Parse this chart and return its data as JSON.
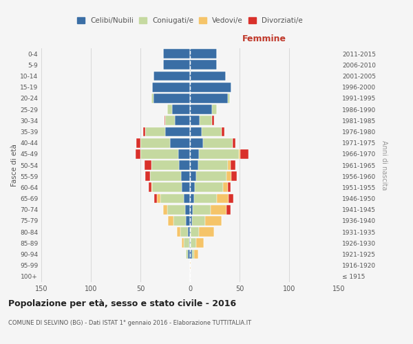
{
  "age_groups": [
    "100+",
    "95-99",
    "90-94",
    "85-89",
    "80-84",
    "75-79",
    "70-74",
    "65-69",
    "60-64",
    "55-59",
    "50-54",
    "45-49",
    "40-44",
    "35-39",
    "30-34",
    "25-29",
    "20-24",
    "15-19",
    "10-14",
    "5-9",
    "0-4"
  ],
  "birth_years": [
    "≤ 1915",
    "1916-1920",
    "1921-1925",
    "1926-1930",
    "1931-1935",
    "1936-1940",
    "1941-1945",
    "1946-1950",
    "1951-1955",
    "1956-1960",
    "1961-1965",
    "1966-1970",
    "1971-1975",
    "1976-1980",
    "1981-1985",
    "1986-1990",
    "1991-1995",
    "1996-2000",
    "2001-2005",
    "2006-2010",
    "2011-2015"
  ],
  "males": {
    "celibi": [
      0,
      0,
      2,
      1,
      2,
      4,
      5,
      6,
      8,
      9,
      11,
      12,
      20,
      25,
      15,
      18,
      37,
      38,
      37,
      27,
      27
    ],
    "coniugati": [
      0,
      0,
      2,
      5,
      8,
      13,
      18,
      24,
      30,
      31,
      28,
      38,
      30,
      20,
      10,
      5,
      2,
      0,
      0,
      0,
      0
    ],
    "vedovi": [
      0,
      0,
      0,
      2,
      3,
      5,
      4,
      3,
      1,
      0,
      0,
      0,
      0,
      0,
      0,
      0,
      0,
      0,
      0,
      0,
      0
    ],
    "divorziati": [
      0,
      0,
      0,
      0,
      0,
      0,
      0,
      3,
      3,
      5,
      7,
      5,
      4,
      2,
      1,
      0,
      0,
      0,
      0,
      0,
      0
    ]
  },
  "females": {
    "nubili": [
      0,
      0,
      2,
      1,
      1,
      2,
      3,
      4,
      5,
      6,
      8,
      9,
      13,
      12,
      10,
      22,
      38,
      42,
      36,
      27,
      27
    ],
    "coniugate": [
      0,
      0,
      2,
      5,
      8,
      13,
      18,
      23,
      28,
      31,
      30,
      40,
      30,
      20,
      12,
      5,
      2,
      0,
      0,
      0,
      0
    ],
    "vedove": [
      0,
      1,
      4,
      8,
      15,
      17,
      16,
      12,
      5,
      5,
      3,
      2,
      0,
      0,
      0,
      0,
      0,
      0,
      0,
      0,
      0
    ],
    "divorziate": [
      0,
      0,
      0,
      0,
      0,
      0,
      4,
      5,
      3,
      5,
      5,
      8,
      3,
      3,
      2,
      0,
      0,
      0,
      0,
      0,
      0
    ]
  },
  "colors": {
    "celibi_nubili": "#3a6ea5",
    "coniugati": "#c5d9a0",
    "vedovi": "#f5c469",
    "divorziati": "#d9312b"
  },
  "title": "Popolazione per età, sesso e stato civile - 2016",
  "subtitle": "COMUNE DI SELVINO (BG) - Dati ISTAT 1° gennaio 2016 - Elaborazione TUTTITALIA.IT",
  "xlabel_right": "Femmine",
  "ylabel_left": "Fasce di età",
  "ylabel_right": "Anni di nascita",
  "xlim": 150,
  "legend_labels": [
    "Celibi/Nubili",
    "Coniugati/e",
    "Vedovi/e",
    "Divorziati/e"
  ],
  "bg_color": "#f5f5f5"
}
